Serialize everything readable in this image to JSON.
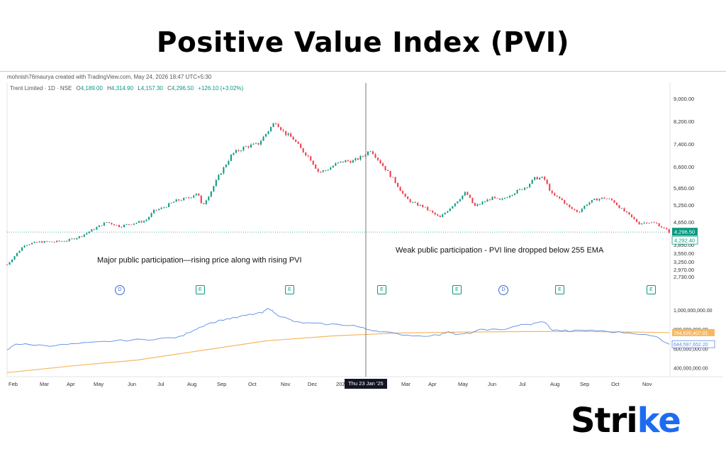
{
  "header": {
    "title": "Positive Value Index (PVI)"
  },
  "chart_info": {
    "creator": "mohnish76maurya created with TradingView.com, May 24, 2026 18:47 UTC+5:30",
    "symbol": "Trent Limited · 1D · NSE",
    "o_label": "O",
    "o_value": "4,189.00",
    "h_label": "H",
    "h_value": "4,314.90",
    "l_label": "L",
    "l_value": "4,157.30",
    "c_label": "C",
    "c_value": "4,296.50",
    "change": "+126.10 (+3.02%)"
  },
  "annotations": {
    "left": "Major public participation—rising price along with rising PVI",
    "right": "Weak public participation - PVI line dropped below 255 EMA"
  },
  "crosshair_date": "Thu 23 Jan '25",
  "event_markers": [
    "D",
    "E",
    "E",
    "E",
    "E",
    "D",
    "E",
    "E"
  ],
  "price_labels": {
    "current": "4,296.50",
    "secondary": "4,292.40"
  },
  "pvi_labels": {
    "ema": "764,620,407.01",
    "pvi": "644,597,652.20"
  },
  "logo": {
    "text": "Stri",
    "accent": "ke"
  },
  "colors": {
    "up": "#089981",
    "down": "#f23645",
    "pvi": "#5b8ce6",
    "ema": "#f5b861",
    "accent": "#1d6cf0"
  },
  "chart_data": {
    "type": "candlestick+line",
    "price_axis": {
      "ticks": [
        "9,000.00",
        "8,200.00",
        "7,400.00",
        "6,600.00",
        "5,850.00",
        "5,250.00",
        "4,650.00",
        "3,850.00",
        "3,550.00",
        "3,250.00",
        "2,970.00",
        "2,730.00"
      ]
    },
    "pvi_axis": {
      "ticks": [
        "1,000,000,000.00",
        "800,000,000.00",
        "600,000,000.00",
        "400,000,000.00"
      ]
    },
    "x_labels": [
      "Feb",
      "Mar",
      "Apr",
      "May",
      "Jun",
      "Jul",
      "Aug",
      "Sep",
      "Oct",
      "Nov",
      "Dec",
      "202",
      "Mar",
      "Apr",
      "May",
      "Jun",
      "Jul",
      "Aug",
      "Sep",
      "Oct",
      "Nov"
    ],
    "price_series": [
      [
        0,
        3150
      ],
      [
        4,
        3500
      ],
      [
        8,
        3850
      ],
      [
        15,
        3950
      ],
      [
        22,
        3950
      ],
      [
        28,
        4000
      ],
      [
        34,
        4150
      ],
      [
        40,
        4400
      ],
      [
        46,
        4650
      ],
      [
        52,
        4500
      ],
      [
        58,
        4600
      ],
      [
        64,
        4700
      ],
      [
        68,
        5050
      ],
      [
        72,
        5150
      ],
      [
        78,
        5400
      ],
      [
        84,
        5500
      ],
      [
        88,
        5700
      ],
      [
        90,
        5200
      ],
      [
        94,
        5700
      ],
      [
        98,
        6300
      ],
      [
        104,
        7050
      ],
      [
        110,
        7300
      ],
      [
        116,
        7400
      ],
      [
        120,
        7800
      ],
      [
        124,
        8200
      ],
      [
        128,
        7800
      ],
      [
        132,
        7600
      ],
      [
        136,
        7200
      ],
      [
        140,
        6900
      ],
      [
        144,
        6400
      ],
      [
        148,
        6500
      ],
      [
        152,
        6700
      ],
      [
        156,
        6800
      ],
      [
        160,
        6800
      ],
      [
        164,
        6950
      ],
      [
        168,
        7200
      ],
      [
        172,
        6800
      ],
      [
        176,
        6400
      ],
      [
        180,
        6000
      ],
      [
        184,
        5500
      ],
      [
        188,
        5300
      ],
      [
        192,
        5200
      ],
      [
        196,
        5000
      ],
      [
        200,
        4800
      ],
      [
        204,
        5100
      ],
      [
        208,
        5400
      ],
      [
        212,
        5700
      ],
      [
        216,
        5200
      ],
      [
        220,
        5350
      ],
      [
        224,
        5500
      ],
      [
        228,
        5400
      ],
      [
        232,
        5600
      ],
      [
        236,
        5750
      ],
      [
        240,
        5900
      ],
      [
        244,
        6200
      ],
      [
        248,
        6200
      ],
      [
        252,
        5600
      ],
      [
        256,
        5450
      ],
      [
        260,
        5150
      ],
      [
        264,
        5000
      ],
      [
        268,
        5300
      ],
      [
        272,
        5450
      ],
      [
        276,
        5500
      ],
      [
        280,
        5400
      ],
      [
        284,
        5100
      ],
      [
        288,
        4850
      ],
      [
        292,
        4600
      ],
      [
        296,
        4650
      ],
      [
        300,
        4600
      ],
      [
        304,
        4400
      ],
      [
        306,
        4296.5
      ]
    ],
    "pvi_series": [
      [
        0,
        580
      ],
      [
        4,
        650
      ],
      [
        10,
        640
      ],
      [
        20,
        630
      ],
      [
        30,
        645
      ],
      [
        40,
        660
      ],
      [
        50,
        680
      ],
      [
        60,
        690
      ],
      [
        70,
        700
      ],
      [
        80,
        720
      ],
      [
        86,
        790
      ],
      [
        92,
        850
      ],
      [
        100,
        900
      ],
      [
        106,
        920
      ],
      [
        112,
        950
      ],
      [
        118,
        970
      ],
      [
        121,
        1020
      ],
      [
        124,
        960
      ],
      [
        128,
        920
      ],
      [
        134,
        870
      ],
      [
        140,
        860
      ],
      [
        150,
        850
      ],
      [
        160,
        840
      ],
      [
        166,
        800
      ],
      [
        172,
        780
      ],
      [
        180,
        750
      ],
      [
        190,
        730
      ],
      [
        200,
        740
      ],
      [
        204,
        780
      ],
      [
        208,
        740
      ],
      [
        214,
        760
      ],
      [
        220,
        800
      ],
      [
        228,
        790
      ],
      [
        236,
        840
      ],
      [
        242,
        850
      ],
      [
        248,
        880
      ],
      [
        252,
        790
      ],
      [
        260,
        780
      ],
      [
        270,
        790
      ],
      [
        280,
        770
      ],
      [
        290,
        760
      ],
      [
        300,
        720
      ],
      [
        306,
        644.6
      ]
    ],
    "ema_series": [
      [
        0,
        350
      ],
      [
        30,
        420
      ],
      [
        60,
        480
      ],
      [
        90,
        580
      ],
      [
        120,
        680
      ],
      [
        150,
        730
      ],
      [
        180,
        760
      ],
      [
        210,
        770
      ],
      [
        240,
        775
      ],
      [
        270,
        775
      ],
      [
        306,
        764.6
      ]
    ]
  }
}
